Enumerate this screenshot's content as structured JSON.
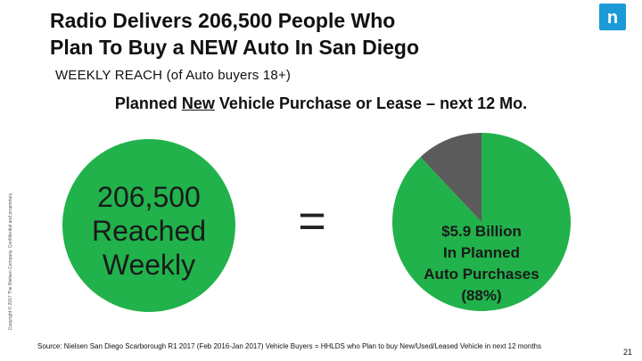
{
  "slide": {
    "title_line1": "Radio Delivers 206,500 People Who",
    "title_line2": "Plan To Buy a NEW Auto In San Diego",
    "subtitle": "WEEKLY REACH (of Auto buyers 18+)",
    "heading_pre": "Planned ",
    "heading_underlined": "New",
    "heading_post": " Vehicle Purchase or Lease – next 12 Mo.",
    "copyright": "Copyright © 2017 The Nielsen Company. Confidential and proprietary.",
    "source": "Source: Nielsen San Diego Scarborough R1 2017 (Feb 2016-Jan 2017) Vehicle Buyers = HHLDS who Plan to buy New/Used/Leased Vehicle in next 12 months",
    "page_number": "21",
    "logo_letter": "n"
  },
  "reach": {
    "line1": "206,500",
    "line2": "Reached",
    "line3": "Weekly",
    "equals": "="
  },
  "chart_data": {
    "type": "pie",
    "slices": [
      {
        "value": 88,
        "color": "#21b24b"
      },
      {
        "value": 12,
        "color": "#5b5b5b"
      }
    ],
    "label_line1": "$5.9 Billion",
    "label_line2": "In Planned",
    "label_line3": "Auto Purchases",
    "label_line4": "(88%)"
  },
  "colors": {
    "green": "#21b24b",
    "gray": "#5b5b5b",
    "logo_blue": "#1a9ad6"
  }
}
